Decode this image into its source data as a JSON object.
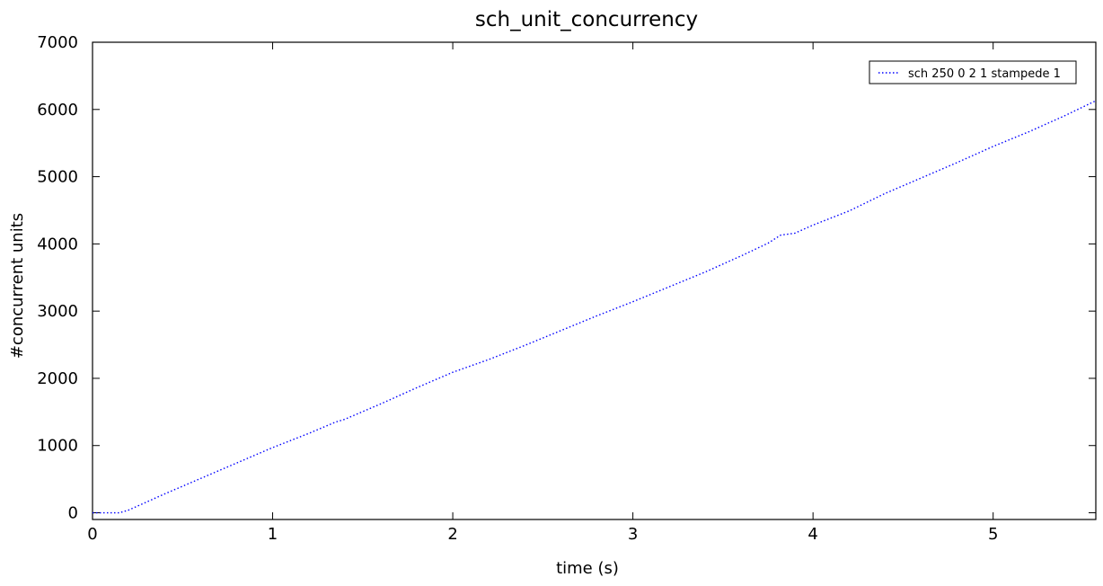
{
  "chart_data": {
    "type": "line",
    "title": "sch_unit_concurrency",
    "xlabel": "time (s)",
    "ylabel": "#concurrent units",
    "xlim": [
      0,
      5.57
    ],
    "ylim": [
      -100,
      7000
    ],
    "xticks": [
      0,
      1,
      2,
      3,
      4,
      5
    ],
    "yticks": [
      0,
      1000,
      2000,
      3000,
      4000,
      5000,
      6000,
      7000
    ],
    "grid": false,
    "legend_position": "top-right",
    "series": [
      {
        "name": "sch 250 0 2 1 stampede 1",
        "color": "#0000ff",
        "line_style": "dotted",
        "x": [
          0,
          0.05,
          0.1,
          0.15,
          0.2,
          0.4,
          0.6,
          0.8,
          1.0,
          1.2,
          1.35,
          1.4,
          1.6,
          1.8,
          2.0,
          2.2,
          2.4,
          2.6,
          2.8,
          3.0,
          3.2,
          3.4,
          3.6,
          3.75,
          3.82,
          3.9,
          4.0,
          4.2,
          4.4,
          4.6,
          4.8,
          5.0,
          5.2,
          5.4,
          5.57
        ],
        "y": [
          0,
          0,
          0,
          0,
          40,
          280,
          510,
          740,
          970,
          1180,
          1350,
          1390,
          1620,
          1860,
          2090,
          2280,
          2490,
          2710,
          2930,
          3140,
          3360,
          3580,
          3820,
          4010,
          4130,
          4160,
          4280,
          4490,
          4750,
          4980,
          5210,
          5450,
          5670,
          5910,
          6130
        ]
      }
    ]
  }
}
